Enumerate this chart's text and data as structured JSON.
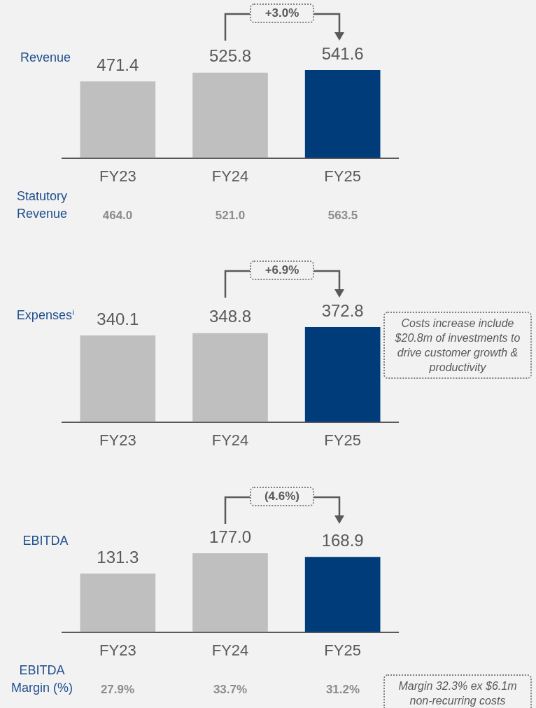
{
  "chart_data": [
    {
      "type": "bar",
      "title": "Revenue",
      "categories": [
        "FY23",
        "FY24",
        "FY25"
      ],
      "values": [
        471.4,
        525.8,
        541.6
      ],
      "colors": [
        "#bfbfbf",
        "#bfbfbf",
        "#003b7a"
      ],
      "value_labels": [
        "471.4",
        "525.8",
        "541.6"
      ],
      "tick_labels": "x",
      "grid": false,
      "legend": false,
      "annotations": [
        "+3.0%",
        "Statutory Revenue",
        "464.0",
        "521.0",
        "563.5"
      ]
    },
    {
      "type": "bar",
      "title": "Expensesⁱ",
      "categories": [
        "FY23",
        "FY24",
        "FY25"
      ],
      "values": [
        340.1,
        348.8,
        372.8
      ],
      "colors": [
        "#bfbfbf",
        "#bfbfbf",
        "#003b7a"
      ],
      "value_labels": [
        "340.1",
        "348.8",
        "372.8"
      ],
      "tick_labels": "x",
      "grid": false,
      "legend": false,
      "annotations": [
        "+6.9%",
        "Costs increase include $20.8m of investments to drive customer growth & productivity"
      ]
    },
    {
      "type": "bar",
      "title": "EBITDA",
      "categories": [
        "FY23",
        "FY24",
        "FY25"
      ],
      "values": [
        131.3,
        177.0,
        168.9
      ],
      "colors": [
        "#bfbfbf",
        "#bfbfbf",
        "#003b7a"
      ],
      "value_labels": [
        "131.3",
        "177.0",
        "168.9"
      ],
      "tick_labels": "x",
      "grid": false,
      "legend": false,
      "annotations": [
        "(4.6%)",
        "EBITDA Margin (%)",
        "27.9%",
        "33.7%",
        "31.2%",
        "Margin 32.3% ex $6.1m non-recurring costs"
      ]
    }
  ]
}
